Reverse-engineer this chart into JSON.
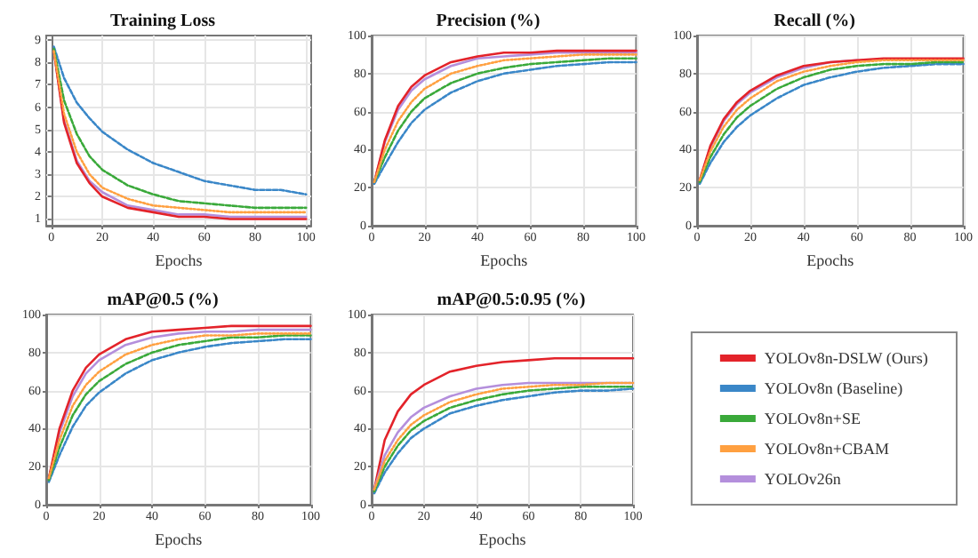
{
  "chart_data": [
    {
      "type": "line",
      "title": "Training Loss",
      "xlabel": "Epochs",
      "x": [
        1,
        5,
        10,
        15,
        20,
        30,
        40,
        50,
        60,
        70,
        80,
        90,
        100
      ],
      "xlim": [
        -2,
        102
      ],
      "xticks": [
        0,
        20,
        40,
        60,
        80,
        100
      ],
      "ylim": [
        0.7,
        9.2
      ],
      "yticks": [
        1,
        2,
        3,
        4,
        5,
        6,
        7,
        8,
        9
      ],
      "grid": true,
      "legend": false,
      "marker": "none",
      "series": [
        {
          "color": "#3a87c8",
          "line_style": "dashed",
          "values": [
            8.7,
            7.3,
            6.2,
            5.5,
            4.9,
            4.1,
            3.5,
            3.1,
            2.7,
            2.5,
            2.3,
            2.3,
            2.1
          ]
        },
        {
          "color": "#3aa93a",
          "line_style": "dashed",
          "values": [
            8.6,
            6.3,
            4.8,
            3.8,
            3.2,
            2.5,
            2.1,
            1.8,
            1.7,
            1.6,
            1.5,
            1.5,
            1.5
          ]
        },
        {
          "color": "#ffa040",
          "line_style": "dotted",
          "values": [
            8.5,
            5.7,
            4.0,
            3.0,
            2.4,
            1.9,
            1.6,
            1.5,
            1.4,
            1.3,
            1.3,
            1.3,
            1.3
          ]
        },
        {
          "color": "#b48fdc",
          "line_style": "solid",
          "values": [
            8.5,
            5.4,
            3.6,
            2.7,
            2.2,
            1.6,
            1.4,
            1.2,
            1.2,
            1.1,
            1.1,
            1.1,
            1.1
          ]
        },
        {
          "color": "#e3232a",
          "line_style": "solid",
          "values": [
            8.5,
            5.3,
            3.5,
            2.6,
            2.0,
            1.5,
            1.3,
            1.1,
            1.1,
            1.0,
            1.0,
            1.0,
            1.0
          ]
        }
      ]
    },
    {
      "type": "line",
      "title": "Precision (%)",
      "xlabel": "Epochs",
      "x": [
        1,
        5,
        10,
        15,
        20,
        30,
        40,
        50,
        60,
        70,
        80,
        90,
        100
      ],
      "xlim": [
        0,
        100
      ],
      "xticks": [
        0,
        20,
        40,
        60,
        80,
        100
      ],
      "ylim": [
        0,
        100
      ],
      "yticks": [
        0,
        20,
        40,
        60,
        80,
        100
      ],
      "grid": true,
      "legend": false,
      "marker": "none",
      "series": [
        {
          "color": "#3a87c8",
          "line_style": "dashed",
          "values": [
            22,
            32,
            44,
            54,
            61,
            70,
            76,
            80,
            82,
            84,
            85,
            86,
            86
          ]
        },
        {
          "color": "#3aa93a",
          "line_style": "dashed",
          "values": [
            23,
            36,
            50,
            60,
            67,
            75,
            80,
            83,
            85,
            86,
            87,
            88,
            88
          ]
        },
        {
          "color": "#ffa040",
          "line_style": "dotted",
          "values": [
            23,
            40,
            55,
            65,
            72,
            80,
            84,
            87,
            88,
            89,
            90,
            90,
            90
          ]
        },
        {
          "color": "#b48fdc",
          "line_style": "solid",
          "values": [
            23,
            44,
            61,
            71,
            77,
            84,
            88,
            89,
            90,
            91,
            91,
            91,
            91
          ]
        },
        {
          "color": "#e3232a",
          "line_style": "solid",
          "values": [
            23,
            45,
            63,
            73,
            79,
            86,
            89,
            91,
            91,
            92,
            92,
            92,
            92
          ]
        }
      ]
    },
    {
      "type": "line",
      "title": "Recall (%)",
      "xlabel": "Epochs",
      "x": [
        1,
        5,
        10,
        15,
        20,
        30,
        40,
        50,
        60,
        70,
        80,
        90,
        100
      ],
      "xlim": [
        0,
        100
      ],
      "xticks": [
        0,
        20,
        40,
        60,
        80,
        100
      ],
      "ylim": [
        0,
        100
      ],
      "yticks": [
        0,
        20,
        40,
        60,
        80,
        100
      ],
      "grid": true,
      "legend": false,
      "marker": "none",
      "series": [
        {
          "color": "#3a87c8",
          "line_style": "dashed",
          "values": [
            22,
            33,
            44,
            52,
            58,
            67,
            74,
            78,
            81,
            83,
            84,
            85,
            85
          ]
        },
        {
          "color": "#3aa93a",
          "line_style": "dashed",
          "values": [
            23,
            36,
            48,
            57,
            63,
            72,
            78,
            82,
            84,
            85,
            85,
            86,
            86
          ]
        },
        {
          "color": "#ffa040",
          "line_style": "dotted",
          "values": [
            24,
            39,
            52,
            61,
            67,
            76,
            81,
            84,
            86,
            87,
            87,
            87,
            87
          ]
        },
        {
          "color": "#b48fdc",
          "line_style": "solid",
          "values": [
            24,
            41,
            55,
            64,
            70,
            78,
            83,
            86,
            87,
            null,
            null,
            null,
            null
          ]
        },
        {
          "color": "#e3232a",
          "line_style": "solid",
          "values": [
            24,
            42,
            56,
            65,
            71,
            79,
            84,
            86,
            87,
            88,
            88,
            88,
            88
          ]
        }
      ]
    },
    {
      "type": "line",
      "title": "mAP@0.5 (%)",
      "xlabel": "Epochs",
      "x": [
        1,
        5,
        10,
        15,
        20,
        30,
        40,
        50,
        60,
        70,
        80,
        90,
        100
      ],
      "xlim": [
        0,
        100
      ],
      "xticks": [
        0,
        20,
        40,
        60,
        80,
        100
      ],
      "ylim": [
        0,
        100
      ],
      "yticks": [
        0,
        20,
        40,
        60,
        80,
        100
      ],
      "grid": true,
      "legend": false,
      "marker": "none",
      "series": [
        {
          "color": "#3a87c8",
          "line_style": "dashed",
          "values": [
            12,
            26,
            41,
            52,
            59,
            69,
            76,
            80,
            83,
            85,
            86,
            87,
            87
          ]
        },
        {
          "color": "#3aa93a",
          "line_style": "dashed",
          "values": [
            13,
            30,
            47,
            58,
            65,
            74,
            80,
            84,
            86,
            88,
            88,
            89,
            89
          ]
        },
        {
          "color": "#ffa040",
          "line_style": "dotted",
          "values": [
            14,
            34,
            52,
            63,
            70,
            79,
            84,
            87,
            89,
            89,
            90,
            90,
            90
          ]
        },
        {
          "color": "#b48fdc",
          "line_style": "solid",
          "values": [
            14,
            38,
            57,
            69,
            76,
            84,
            88,
            90,
            91,
            91,
            92,
            92,
            92
          ]
        },
        {
          "color": "#e3232a",
          "line_style": "solid",
          "values": [
            14,
            40,
            60,
            72,
            79,
            87,
            91,
            92,
            93,
            94,
            94,
            94,
            94
          ]
        }
      ]
    },
    {
      "type": "line",
      "title": "mAP@0.5:0.95 (%)",
      "xlabel": "Epochs",
      "x": [
        1,
        5,
        10,
        15,
        20,
        30,
        40,
        50,
        60,
        70,
        80,
        90,
        100
      ],
      "xlim": [
        0,
        100
      ],
      "xticks": [
        0,
        20,
        40,
        60,
        80,
        100
      ],
      "ylim": [
        0,
        100
      ],
      "yticks": [
        0,
        20,
        40,
        60,
        80,
        100
      ],
      "grid": true,
      "legend": "right",
      "marker": "none",
      "series": [
        {
          "name": "YOLOv8n-DSLW (Ours)",
          "color": "#e3232a",
          "line_style": "solid",
          "values": [
            8,
            34,
            49,
            58,
            63,
            70,
            73,
            75,
            76,
            77,
            77,
            77,
            77
          ]
        },
        {
          "name": "YOLOv8n (Baseline)",
          "color": "#3a87c8",
          "line_style": "dashed",
          "values": [
            6,
            17,
            27,
            35,
            40,
            48,
            52,
            55,
            57,
            59,
            60,
            60,
            61
          ]
        },
        {
          "name": "YOLOv8n+SE",
          "color": "#3aa93a",
          "line_style": "dashed",
          "values": [
            7,
            20,
            31,
            39,
            44,
            51,
            55,
            58,
            60,
            61,
            62,
            62,
            62
          ]
        },
        {
          "name": "YOLOv8n+CBAM",
          "color": "#ffa040",
          "line_style": "dotted",
          "values": [
            8,
            23,
            34,
            42,
            47,
            54,
            58,
            61,
            62,
            63,
            63,
            64,
            64
          ]
        },
        {
          "name": "YOLOv26n",
          "color": "#b48fdc",
          "line_style": "solid",
          "values": [
            8,
            26,
            38,
            46,
            51,
            57,
            61,
            63,
            64,
            64,
            64,
            64,
            64
          ]
        }
      ]
    }
  ]
}
